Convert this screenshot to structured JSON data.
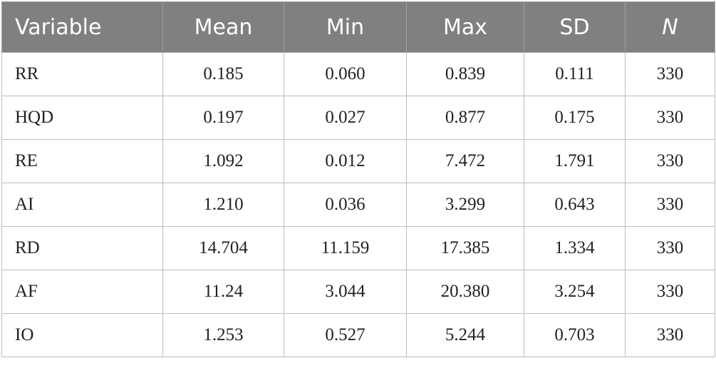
{
  "table": {
    "header": [
      "Variable",
      "Mean",
      "Min",
      "Max",
      "SD",
      "N"
    ],
    "rows": [
      [
        "RR",
        "0.185",
        "0.060",
        "0.839",
        "0.111",
        "330"
      ],
      [
        "HQD",
        "0.197",
        "0.027",
        "0.877",
        "0.175",
        "330"
      ],
      [
        "RE",
        "1.092",
        "0.012",
        "7.472",
        "1.791",
        "330"
      ],
      [
        "AI",
        "1.210",
        "0.036",
        "3.299",
        "0.643",
        "330"
      ],
      [
        "RD",
        "14.704",
        "11.159",
        "17.385",
        "1.334",
        "330"
      ],
      [
        "AF",
        "11.24",
        "3.044",
        "20.380",
        "3.254",
        "330"
      ],
      [
        "IO",
        "1.253",
        "0.527",
        "5.244",
        "0.703",
        "330"
      ]
    ]
  }
}
